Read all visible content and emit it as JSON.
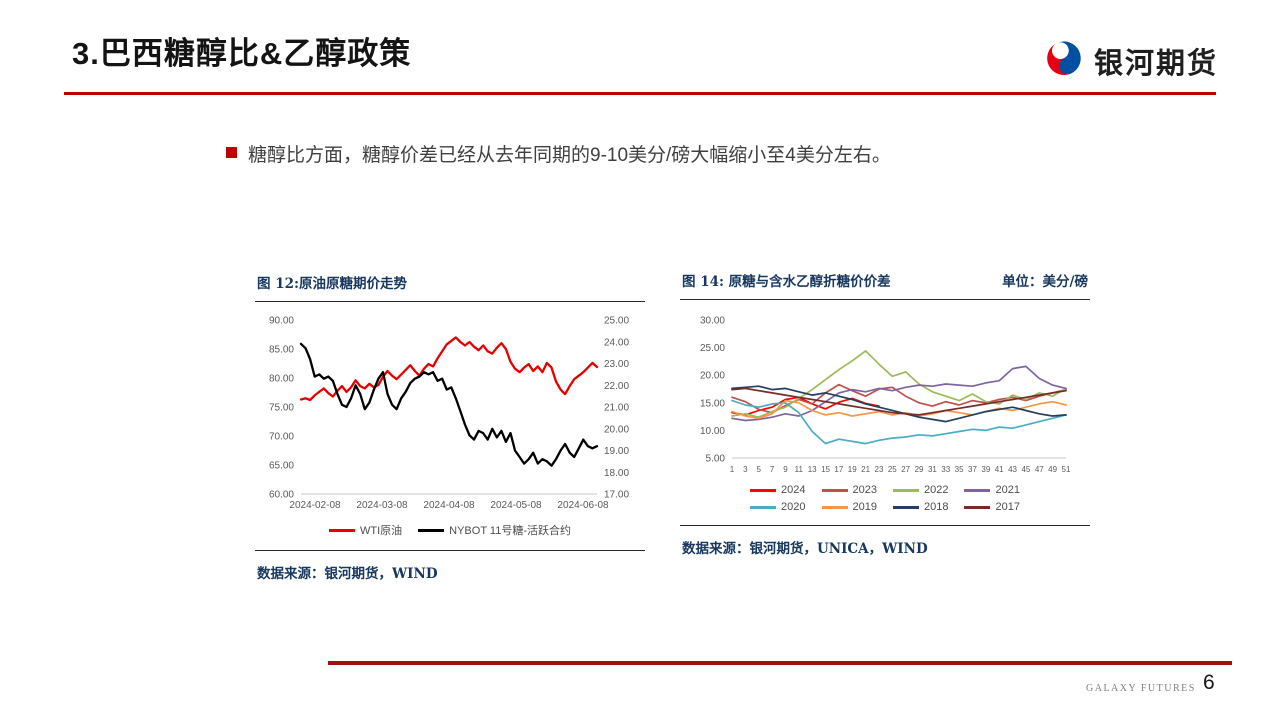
{
  "header": {
    "title": "3.巴西糖醇比&乙醇政策",
    "brand": "银河期货",
    "accent_color": "#c00000",
    "logo_colors": {
      "red": "#e60012",
      "blue": "#0050a2"
    }
  },
  "bullet": {
    "text": "糖醇比方面，糖醇价差已经从去年同期的9-10美分/磅大幅缩小至4美分左右。"
  },
  "footer": {
    "brand_text": "GALAXY FUTURES",
    "page_number": "6",
    "rule_color": "#9e1310"
  },
  "chart_data": [
    {
      "type": "line",
      "title": "图 12:原油原糖期价走势",
      "source": "数据来源：银河期货，WIND",
      "legend_position": "bottom",
      "grid": false,
      "left_axis": {
        "min": 60,
        "max": 90,
        "ticks": [
          "90.00",
          "85.00",
          "80.00",
          "75.00",
          "70.00",
          "65.00",
          "60.00"
        ]
      },
      "right_axis": {
        "min": 17,
        "max": 25,
        "ticks": [
          "25.00",
          "24.00",
          "23.00",
          "22.00",
          "21.00",
          "20.00",
          "19.00",
          "18.00",
          "17.00"
        ]
      },
      "x_ticks": [
        "2024-02-08",
        "2024-03-08",
        "2024-04-08",
        "2024-05-08",
        "2024-06-08"
      ],
      "series": [
        {
          "name": "WTI原油",
          "color": "#e50000",
          "axis": "left",
          "values": [
            76.3,
            76.5,
            76.2,
            77.0,
            77.6,
            78.2,
            77.4,
            76.8,
            77.8,
            78.6,
            77.6,
            78.4,
            79.6,
            78.6,
            78.2,
            79.0,
            78.4,
            78.8,
            80.2,
            81.2,
            80.4,
            79.8,
            80.6,
            81.4,
            82.2,
            81.2,
            80.4,
            81.6,
            82.4,
            82.0,
            83.4,
            84.6,
            85.8,
            86.4,
            87.0,
            86.2,
            85.6,
            86.2,
            85.4,
            84.8,
            85.6,
            84.6,
            84.2,
            85.2,
            86.0,
            85.0,
            82.8,
            81.6,
            81.0,
            81.8,
            82.4,
            81.2,
            82.0,
            81.0,
            82.6,
            81.8,
            79.4,
            78.0,
            77.2,
            78.6,
            79.8,
            80.4,
            81.0,
            81.8,
            82.6,
            81.9
          ]
        },
        {
          "name": "NYBOT 11号糖-活跃合约",
          "color": "#000000",
          "axis": "right",
          "values": [
            23.9,
            23.7,
            23.2,
            22.4,
            22.5,
            22.3,
            22.4,
            22.2,
            21.6,
            21.1,
            21.0,
            21.4,
            22.0,
            21.6,
            20.9,
            21.2,
            21.8,
            22.3,
            22.6,
            21.6,
            21.1,
            20.9,
            21.4,
            21.7,
            22.1,
            22.3,
            22.4,
            22.6,
            22.5,
            22.6,
            22.2,
            22.3,
            21.8,
            21.9,
            21.4,
            20.8,
            20.2,
            19.7,
            19.5,
            19.9,
            19.8,
            19.5,
            20.0,
            19.6,
            19.9,
            19.4,
            19.8,
            19.0,
            18.7,
            18.4,
            18.6,
            18.9,
            18.4,
            18.6,
            18.5,
            18.3,
            18.6,
            19.0,
            19.3,
            18.9,
            18.7,
            19.1,
            19.5,
            19.2,
            19.1,
            19.2
          ]
        }
      ]
    },
    {
      "type": "line",
      "title": "图 14: 原糖与含水乙醇折糖价价差",
      "unit": "单位：美分/磅",
      "source": "数据来源：银河期货，UNICA，WIND",
      "legend_position": "bottom",
      "grid": false,
      "left_axis": {
        "min": 5,
        "max": 30,
        "ticks": [
          "30.00",
          "25.00",
          "20.00",
          "15.00",
          "10.00",
          "5.00"
        ]
      },
      "x_ticks": [
        "1",
        "3",
        "5",
        "7",
        "9",
        "11",
        "13",
        "15",
        "17",
        "19",
        "21",
        "23",
        "25",
        "27",
        "29",
        "31",
        "33",
        "35",
        "37",
        "39",
        "41",
        "43",
        "45",
        "47",
        "49",
        "51"
      ],
      "x_slots": 26,
      "xlabel_note": "week of year (odd weeks 1-51)",
      "series": [
        {
          "name": "2024",
          "color": "#ff0000",
          "values": [
            13.2,
            12.8,
            13.6,
            14.2,
            15.6,
            16.0,
            14.8,
            13.9,
            15.1,
            15.8,
            14.9,
            14.4
          ]
        },
        {
          "name": "2023",
          "color": "#c0504d",
          "values": [
            16.0,
            15.2,
            13.8,
            13.2,
            14.5,
            15.6,
            14.8,
            16.8,
            18.3,
            17.2,
            16.2,
            17.5,
            17.8,
            16.2,
            15.0,
            14.4,
            15.2,
            14.6,
            15.4,
            15.0,
            15.6,
            16.0,
            15.4,
            16.2,
            16.8,
            17.4
          ]
        },
        {
          "name": "2022",
          "color": "#9bbb59",
          "values": [
            12.6,
            13.0,
            12.4,
            13.4,
            14.2,
            15.8,
            17.4,
            19.2,
            21.0,
            22.6,
            24.4,
            22.0,
            19.8,
            20.6,
            18.4,
            17.0,
            16.2,
            15.4,
            16.6,
            15.2,
            14.8,
            16.4,
            15.6,
            16.8,
            16.2,
            17.6
          ]
        },
        {
          "name": "2021",
          "color": "#8064a2",
          "values": [
            12.2,
            11.8,
            12.0,
            12.4,
            13.0,
            12.6,
            13.6,
            15.2,
            16.8,
            17.4,
            17.0,
            17.6,
            17.2,
            17.8,
            18.2,
            18.0,
            18.4,
            18.2,
            18.0,
            18.6,
            19.0,
            21.2,
            21.6,
            19.4,
            18.2,
            17.6
          ]
        },
        {
          "name": "2020",
          "color": "#4bacc6",
          "values": [
            15.4,
            14.6,
            14.2,
            14.8,
            15.0,
            13.2,
            9.8,
            7.6,
            8.4,
            8.0,
            7.6,
            8.2,
            8.6,
            8.8,
            9.2,
            9.0,
            9.4,
            9.8,
            10.2,
            10.0,
            10.6,
            10.4,
            11.0,
            11.6,
            12.2,
            12.8
          ]
        },
        {
          "name": "2019",
          "color": "#f79646",
          "values": [
            13.4,
            12.6,
            12.2,
            13.0,
            15.4,
            15.0,
            13.6,
            12.8,
            13.2,
            12.6,
            13.0,
            13.4,
            12.8,
            13.2,
            12.6,
            13.0,
            13.6,
            13.2,
            12.8,
            13.4,
            14.0,
            13.6,
            14.2,
            14.8,
            15.2,
            14.6
          ]
        },
        {
          "name": "2018",
          "color": "#243f60",
          "values": [
            17.6,
            17.8,
            18.0,
            17.4,
            17.6,
            17.0,
            16.4,
            16.8,
            16.2,
            15.6,
            14.8,
            14.2,
            13.6,
            13.0,
            12.4,
            12.0,
            11.6,
            12.2,
            12.8,
            13.4,
            13.8,
            14.2,
            13.6,
            13.0,
            12.6,
            12.8
          ]
        },
        {
          "name": "2017",
          "color": "#772c2a",
          "values": [
            17.4,
            17.6,
            17.2,
            16.8,
            16.4,
            16.0,
            15.6,
            15.2,
            14.8,
            14.4,
            14.0,
            13.6,
            13.2,
            13.0,
            12.8,
            13.2,
            13.6,
            14.0,
            14.4,
            14.8,
            15.2,
            15.6,
            16.0,
            16.4,
            16.8,
            17.2
          ]
        }
      ]
    }
  ]
}
